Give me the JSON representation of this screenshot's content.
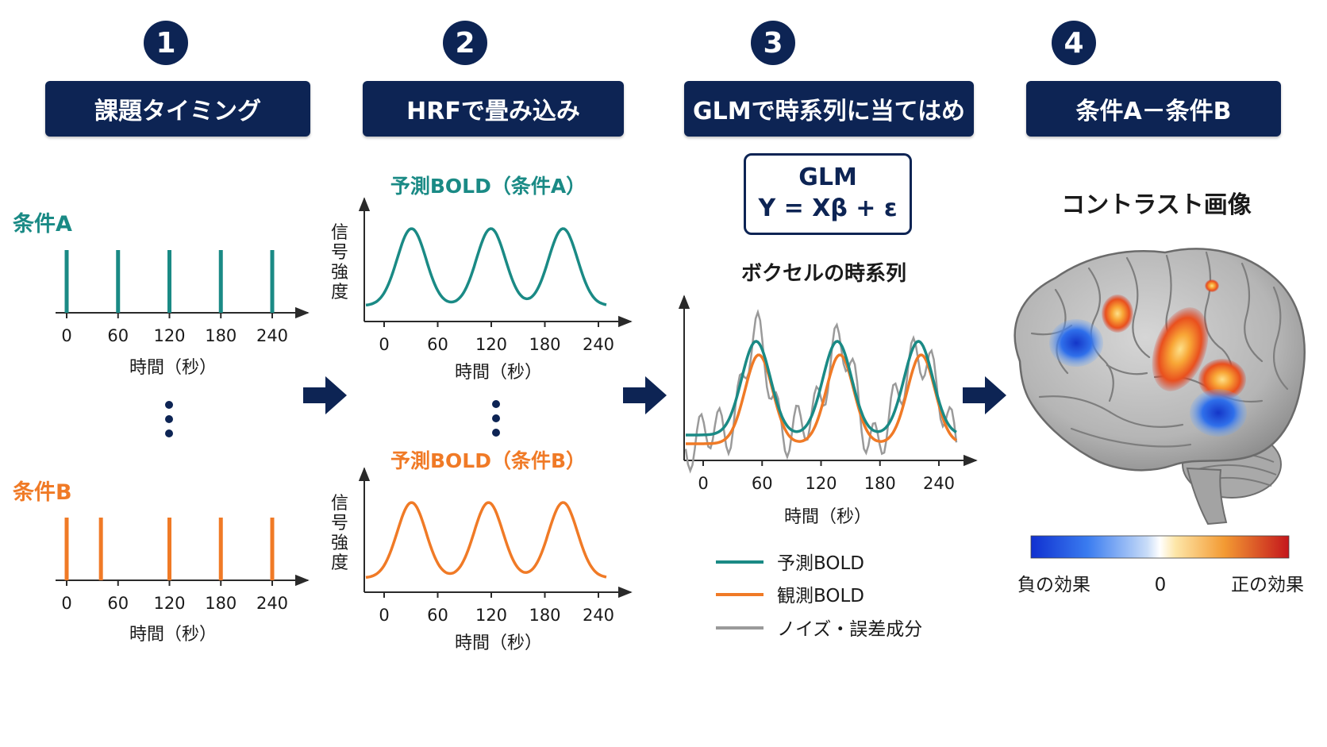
{
  "steps": [
    {
      "number": "1",
      "title": "課題タイミング"
    },
    {
      "number": "2",
      "title": "HRFで畳み込み"
    },
    {
      "number": "3",
      "title": "GLMで時系列に当てはめ"
    },
    {
      "number": "4",
      "title": "条件A－条件B"
    }
  ],
  "panel1": {
    "condA_label": "条件A",
    "condB_label": "条件B",
    "xticks": [
      "0",
      "60",
      "120",
      "180",
      "240"
    ],
    "xlabel": "時間（秒）",
    "condA_onsets": [
      0,
      60,
      120,
      180,
      240
    ],
    "condB_onsets": [
      0,
      40,
      120,
      180,
      240
    ]
  },
  "panel2": {
    "titleA": "予測BOLD（条件A）",
    "titleB": "予測BOLD（条件B）",
    "ylabel": "信号強度",
    "xticks": [
      "0",
      "60",
      "120",
      "180",
      "240"
    ],
    "xlabel": "時間（秒）"
  },
  "panel3": {
    "glm_title": "GLM",
    "glm_equation": "Y = Xβ + ε",
    "chart_title": "ボクセルの時系列",
    "xticks": [
      "0",
      "60",
      "120",
      "180",
      "240"
    ],
    "xlabel": "時間（秒）",
    "legend": [
      {
        "label": "予測BOLD",
        "color": "#1a8a85"
      },
      {
        "label": "観測BOLD",
        "color": "#f07a26"
      },
      {
        "label": "ノイズ・誤差成分",
        "color": "#9a9a9a"
      }
    ]
  },
  "panel4": {
    "title": "コントラスト画像",
    "colorbar_left": "負の効果",
    "colorbar_mid": "0",
    "colorbar_right": "正の効果"
  },
  "colors": {
    "navy": "#0d2454",
    "teal": "#1a8a85",
    "orange": "#f07a26",
    "gray": "#9a9a9a"
  }
}
